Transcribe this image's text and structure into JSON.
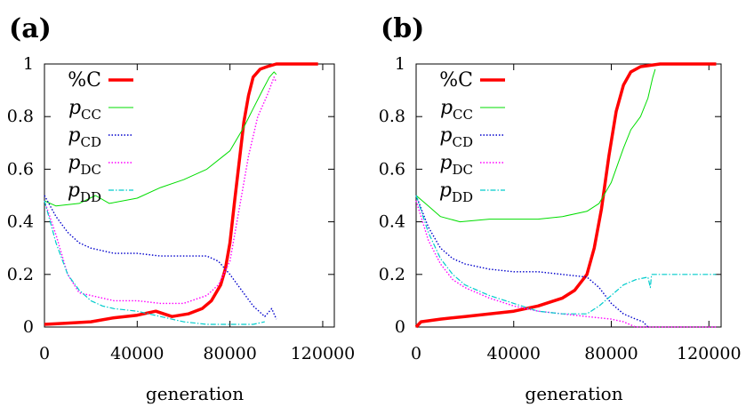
{
  "figure": {
    "title": ""
  },
  "chart_data": [
    {
      "type": "line",
      "panel_label": "(a)",
      "title": "",
      "xlabel": "generation",
      "ylabel": "",
      "xlim": [
        0,
        125000
      ],
      "ylim": [
        0,
        1
      ],
      "xticks": [
        0,
        40000,
        80000,
        120000
      ],
      "xtick_labels": [
        "0",
        "40000",
        "80000",
        "120000"
      ],
      "yticks": [
        0,
        0.2,
        0.4,
        0.6,
        0.8,
        1
      ],
      "ytick_labels": [
        "0",
        "0.2",
        "0.4",
        "0.6",
        "0.8",
        "1"
      ],
      "grid": false,
      "legend_position": "top-left",
      "series": [
        {
          "name": "%C",
          "legend_main": "%C",
          "legend_sub": "",
          "color": "#ff0000",
          "style": "solid",
          "width": 3.5,
          "points": [
            [
              0,
              0.01
            ],
            [
              10000,
              0.015
            ],
            [
              20000,
              0.02
            ],
            [
              30000,
              0.035
            ],
            [
              40000,
              0.045
            ],
            [
              48000,
              0.06
            ],
            [
              55000,
              0.04
            ],
            [
              62000,
              0.05
            ],
            [
              68000,
              0.07
            ],
            [
              72000,
              0.1
            ],
            [
              76000,
              0.16
            ],
            [
              78000,
              0.22
            ],
            [
              80000,
              0.32
            ],
            [
              82000,
              0.48
            ],
            [
              84000,
              0.63
            ],
            [
              86000,
              0.78
            ],
            [
              88000,
              0.88
            ],
            [
              90000,
              0.95
            ],
            [
              93000,
              0.98
            ],
            [
              96000,
              0.99
            ],
            [
              100000,
              1.0
            ],
            [
              118000,
              1.0
            ]
          ]
        },
        {
          "name": "pCC",
          "legend_main": "p",
          "legend_sub": "CC",
          "color": "#00dd00",
          "style": "solid",
          "width": 1,
          "points": [
            [
              0,
              0.48
            ],
            [
              5000,
              0.46
            ],
            [
              15000,
              0.47
            ],
            [
              22000,
              0.5
            ],
            [
              28000,
              0.47
            ],
            [
              40000,
              0.49
            ],
            [
              50000,
              0.53
            ],
            [
              60000,
              0.56
            ],
            [
              70000,
              0.6
            ],
            [
              80000,
              0.67
            ],
            [
              86000,
              0.76
            ],
            [
              90000,
              0.83
            ],
            [
              94000,
              0.9
            ],
            [
              97000,
              0.95
            ],
            [
              99000,
              0.97
            ],
            [
              100000,
              0.96
            ]
          ]
        },
        {
          "name": "pCD",
          "legend_main": "p",
          "legend_sub": "CD",
          "color": "#0000cc",
          "style": "dotted",
          "width": 1.4,
          "points": [
            [
              0,
              0.5
            ],
            [
              5000,
              0.42
            ],
            [
              10000,
              0.36
            ],
            [
              15000,
              0.32
            ],
            [
              20000,
              0.3
            ],
            [
              30000,
              0.28
            ],
            [
              40000,
              0.28
            ],
            [
              50000,
              0.27
            ],
            [
              60000,
              0.27
            ],
            [
              70000,
              0.27
            ],
            [
              75000,
              0.25
            ],
            [
              80000,
              0.2
            ],
            [
              85000,
              0.14
            ],
            [
              90000,
              0.08
            ],
            [
              95000,
              0.04
            ],
            [
              98000,
              0.07
            ],
            [
              100000,
              0.03
            ]
          ]
        },
        {
          "name": "pDC",
          "legend_main": "p",
          "legend_sub": "DC",
          "color": "#ff00ff",
          "style": "dotted",
          "width": 1.4,
          "points": [
            [
              0,
              0.48
            ],
            [
              5000,
              0.35
            ],
            [
              10000,
              0.2
            ],
            [
              15000,
              0.13
            ],
            [
              20000,
              0.12
            ],
            [
              30000,
              0.1
            ],
            [
              40000,
              0.1
            ],
            [
              50000,
              0.09
            ],
            [
              60000,
              0.09
            ],
            [
              70000,
              0.12
            ],
            [
              75000,
              0.16
            ],
            [
              80000,
              0.25
            ],
            [
              84000,
              0.45
            ],
            [
              88000,
              0.65
            ],
            [
              92000,
              0.8
            ],
            [
              96000,
              0.88
            ],
            [
              99000,
              0.95
            ],
            [
              100000,
              0.93
            ]
          ]
        },
        {
          "name": "pDD",
          "legend_main": "p",
          "legend_sub": "DD",
          "color": "#00cccc",
          "style": "dashdot",
          "width": 1.2,
          "points": [
            [
              0,
              0.48
            ],
            [
              5000,
              0.32
            ],
            [
              10000,
              0.2
            ],
            [
              15000,
              0.14
            ],
            [
              20000,
              0.1
            ],
            [
              25000,
              0.08
            ],
            [
              30000,
              0.07
            ],
            [
              40000,
              0.06
            ],
            [
              50000,
              0.04
            ],
            [
              60000,
              0.02
            ],
            [
              70000,
              0.01
            ],
            [
              80000,
              0.01
            ],
            [
              90000,
              0.01
            ],
            [
              95000,
              0.02
            ]
          ]
        }
      ]
    },
    {
      "type": "line",
      "panel_label": "(b)",
      "title": "",
      "xlabel": "generation",
      "ylabel": "",
      "xlim": [
        0,
        125000
      ],
      "ylim": [
        0,
        1
      ],
      "xticks": [
        0,
        40000,
        80000,
        120000
      ],
      "xtick_labels": [
        "0",
        "40000",
        "80000",
        "120000"
      ],
      "yticks": [
        0,
        0.2,
        0.4,
        0.6,
        0.8,
        1
      ],
      "ytick_labels": [
        "0",
        "0.2",
        "0.4",
        "0.6",
        "0.8",
        "1"
      ],
      "grid": false,
      "legend_position": "top-left",
      "series": [
        {
          "name": "%C",
          "legend_main": "%C",
          "legend_sub": "",
          "color": "#ff0000",
          "style": "solid",
          "width": 3.5,
          "points": [
            [
              0,
              0.0
            ],
            [
              2000,
              0.02
            ],
            [
              10000,
              0.03
            ],
            [
              20000,
              0.04
            ],
            [
              30000,
              0.05
            ],
            [
              40000,
              0.06
            ],
            [
              50000,
              0.08
            ],
            [
              60000,
              0.11
            ],
            [
              65000,
              0.14
            ],
            [
              70000,
              0.2
            ],
            [
              73000,
              0.3
            ],
            [
              76000,
              0.45
            ],
            [
              79000,
              0.65
            ],
            [
              82000,
              0.82
            ],
            [
              85000,
              0.92
            ],
            [
              88000,
              0.97
            ],
            [
              92000,
              0.99
            ],
            [
              100000,
              1.0
            ],
            [
              123000,
              1.0
            ]
          ]
        },
        {
          "name": "pCC",
          "legend_main": "p",
          "legend_sub": "CC",
          "color": "#00dd00",
          "style": "solid",
          "width": 1,
          "points": [
            [
              0,
              0.5
            ],
            [
              5000,
              0.46
            ],
            [
              10000,
              0.42
            ],
            [
              18000,
              0.4
            ],
            [
              30000,
              0.41
            ],
            [
              40000,
              0.41
            ],
            [
              50000,
              0.41
            ],
            [
              60000,
              0.42
            ],
            [
              70000,
              0.44
            ],
            [
              75000,
              0.47
            ],
            [
              80000,
              0.55
            ],
            [
              85000,
              0.68
            ],
            [
              88000,
              0.75
            ],
            [
              92000,
              0.8
            ],
            [
              95000,
              0.87
            ],
            [
              97000,
              0.95
            ],
            [
              98000,
              0.98
            ]
          ]
        },
        {
          "name": "pCD",
          "legend_main": "p",
          "legend_sub": "CD",
          "color": "#0000cc",
          "style": "dotted",
          "width": 1.4,
          "points": [
            [
              0,
              0.5
            ],
            [
              5000,
              0.38
            ],
            [
              10000,
              0.3
            ],
            [
              15000,
              0.26
            ],
            [
              20000,
              0.24
            ],
            [
              30000,
              0.22
            ],
            [
              40000,
              0.21
            ],
            [
              50000,
              0.21
            ],
            [
              60000,
              0.2
            ],
            [
              70000,
              0.19
            ],
            [
              75000,
              0.15
            ],
            [
              80000,
              0.09
            ],
            [
              85000,
              0.05
            ],
            [
              90000,
              0.03
            ],
            [
              93000,
              0.02
            ],
            [
              95000,
              0.0
            ]
          ]
        },
        {
          "name": "pDC",
          "legend_main": "p",
          "legend_sub": "DC",
          "color": "#ff00ff",
          "style": "dotted",
          "width": 1.4,
          "points": [
            [
              0,
              0.48
            ],
            [
              5000,
              0.33
            ],
            [
              10000,
              0.24
            ],
            [
              15000,
              0.18
            ],
            [
              20000,
              0.15
            ],
            [
              30000,
              0.11
            ],
            [
              40000,
              0.08
            ],
            [
              50000,
              0.06
            ],
            [
              60000,
              0.05
            ],
            [
              70000,
              0.04
            ],
            [
              80000,
              0.03
            ],
            [
              85000,
              0.02
            ],
            [
              90000,
              0.0
            ],
            [
              123000,
              0.0
            ]
          ]
        },
        {
          "name": "pDD",
          "legend_main": "p",
          "legend_sub": "DD",
          "color": "#00cccc",
          "style": "dashdot",
          "width": 1.2,
          "points": [
            [
              0,
              0.5
            ],
            [
              5000,
              0.36
            ],
            [
              10000,
              0.26
            ],
            [
              15000,
              0.2
            ],
            [
              20000,
              0.16
            ],
            [
              30000,
              0.12
            ],
            [
              40000,
              0.09
            ],
            [
              50000,
              0.06
            ],
            [
              60000,
              0.05
            ],
            [
              70000,
              0.05
            ],
            [
              75000,
              0.08
            ],
            [
              80000,
              0.12
            ],
            [
              85000,
              0.16
            ],
            [
              90000,
              0.18
            ],
            [
              95000,
              0.19
            ],
            [
              96000,
              0.15
            ],
            [
              96500,
              0.2
            ],
            [
              123000,
              0.2
            ]
          ]
        }
      ]
    }
  ]
}
